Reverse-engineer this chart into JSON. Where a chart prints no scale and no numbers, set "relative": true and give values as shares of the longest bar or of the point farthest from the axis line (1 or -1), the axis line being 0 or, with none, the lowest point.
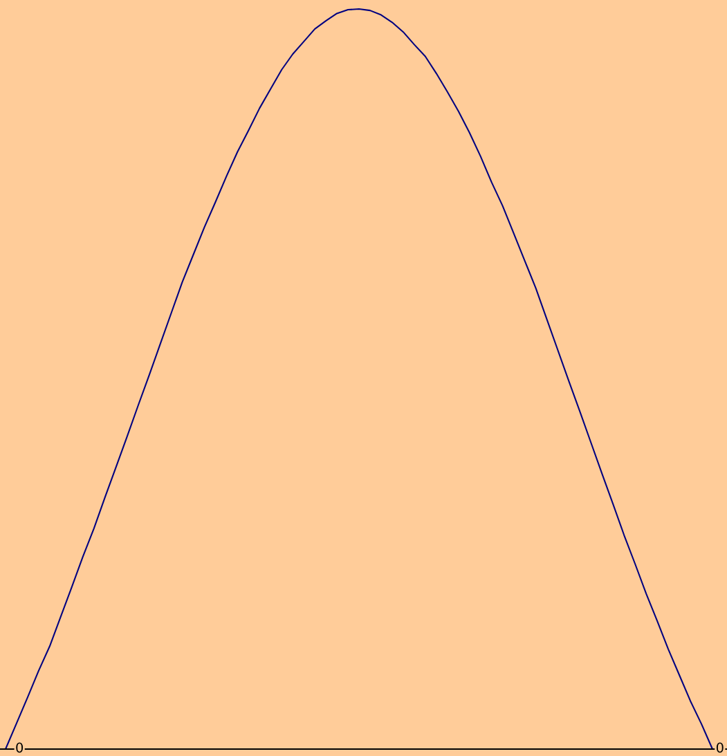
{
  "chart_data": {
    "type": "line",
    "relative": true,
    "categories": [
      null,
      null,
      null,
      null,
      null,
      null,
      null,
      null,
      null,
      null,
      null,
      null,
      null,
      null,
      null,
      null,
      null,
      null,
      null,
      null,
      null,
      null,
      null,
      null,
      null,
      null,
      null,
      null,
      null,
      null,
      null,
      null,
      null,
      null,
      null,
      null,
      null,
      null,
      null,
      null,
      null,
      null,
      null,
      null,
      null,
      null,
      null,
      null,
      null,
      null,
      null,
      null,
      null,
      null,
      null,
      null,
      null,
      null,
      null,
      null,
      null,
      null,
      null,
      null,
      null
    ],
    "series": [
      {
        "color": "#000080",
        "values": [
          0,
          0.035,
          0.07,
          0.106,
          0.139,
          0.179,
          0.219,
          0.26,
          0.298,
          0.34,
          0.381,
          0.422,
          0.464,
          0.505,
          0.547,
          0.589,
          0.631,
          0.668,
          0.705,
          0.739,
          0.774,
          0.807,
          0.836,
          0.866,
          0.892,
          0.918,
          0.939,
          0.956,
          0.973,
          0.984,
          0.994,
          0.999,
          1,
          0.998,
          0.992,
          0.982,
          0.969,
          0.952,
          0.936,
          0.913,
          0.888,
          0.862,
          0.833,
          0.801,
          0.766,
          0.734,
          0.697,
          0.66,
          0.623,
          0.581,
          0.539,
          0.497,
          0.456,
          0.414,
          0.372,
          0.331,
          0.289,
          0.25,
          0.21,
          0.173,
          0.135,
          0.1,
          0.065,
          0.034,
          0
        ]
      }
    ],
    "annotations": [
      "0",
      "0"
    ],
    "marker": "none",
    "line_style": "solid"
  }
}
